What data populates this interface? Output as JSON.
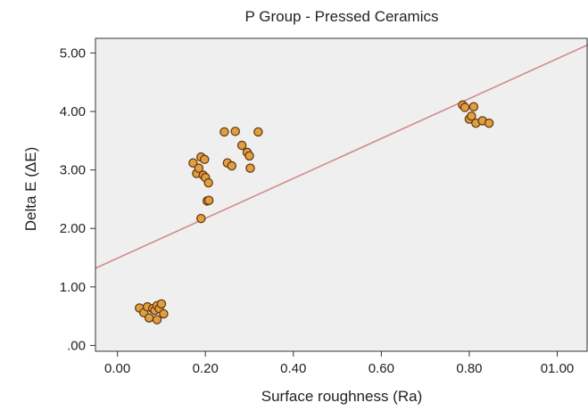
{
  "chart_data": {
    "type": "scatter",
    "title": "P Group - Pressed Ceramics",
    "xlabel": "Surface roughness (Ra)",
    "ylabel": "Delta E (ΔE)",
    "xlim": [
      -0.05,
      1.07
    ],
    "ylim": [
      -0.1,
      5.25
    ],
    "xticks": [
      0.0,
      0.2,
      0.4,
      0.6,
      0.8,
      1.0
    ],
    "xtick_labels": [
      "0.00",
      "0.20",
      "0.40",
      "0.60",
      "0.80",
      "01.00"
    ],
    "yticks": [
      0.0,
      1.0,
      2.0,
      3.0,
      4.0,
      5.0
    ],
    "ytick_labels": [
      ".00",
      "1.00",
      "2.00",
      "3.00",
      "4.00",
      "5.00"
    ],
    "grid": false,
    "points": [
      {
        "x": 0.05,
        "y": 0.64
      },
      {
        "x": 0.06,
        "y": 0.56
      },
      {
        "x": 0.068,
        "y": 0.66
      },
      {
        "x": 0.072,
        "y": 0.47
      },
      {
        "x": 0.08,
        "y": 0.63
      },
      {
        "x": 0.085,
        "y": 0.6
      },
      {
        "x": 0.09,
        "y": 0.68
      },
      {
        "x": 0.09,
        "y": 0.44
      },
      {
        "x": 0.095,
        "y": 0.63
      },
      {
        "x": 0.1,
        "y": 0.71
      },
      {
        "x": 0.105,
        "y": 0.54
      },
      {
        "x": 0.172,
        "y": 3.12
      },
      {
        "x": 0.18,
        "y": 2.94
      },
      {
        "x": 0.185,
        "y": 3.03
      },
      {
        "x": 0.19,
        "y": 2.17
      },
      {
        "x": 0.19,
        "y": 3.22
      },
      {
        "x": 0.195,
        "y": 2.91
      },
      {
        "x": 0.198,
        "y": 3.18
      },
      {
        "x": 0.2,
        "y": 2.87
      },
      {
        "x": 0.204,
        "y": 2.47
      },
      {
        "x": 0.207,
        "y": 2.78
      },
      {
        "x": 0.208,
        "y": 2.48
      },
      {
        "x": 0.243,
        "y": 3.65
      },
      {
        "x": 0.25,
        "y": 3.12
      },
      {
        "x": 0.26,
        "y": 3.07
      },
      {
        "x": 0.268,
        "y": 3.66
      },
      {
        "x": 0.283,
        "y": 3.42
      },
      {
        "x": 0.295,
        "y": 3.3
      },
      {
        "x": 0.3,
        "y": 3.24
      },
      {
        "x": 0.302,
        "y": 3.03
      },
      {
        "x": 0.32,
        "y": 3.65
      },
      {
        "x": 0.785,
        "y": 4.11
      },
      {
        "x": 0.79,
        "y": 4.07
      },
      {
        "x": 0.8,
        "y": 3.87
      },
      {
        "x": 0.805,
        "y": 3.92
      },
      {
        "x": 0.81,
        "y": 4.08
      },
      {
        "x": 0.815,
        "y": 3.8
      },
      {
        "x": 0.83,
        "y": 3.84
      },
      {
        "x": 0.845,
        "y": 3.8
      }
    ],
    "fit_line": {
      "x": [
        -0.05,
        1.07
      ],
      "y": [
        1.32,
        5.14
      ]
    },
    "colors": {
      "plot_background": "#efefef",
      "marker_fill": "#e0a042",
      "marker_edge": "#6a3a12",
      "fit_line": "#d48a8a",
      "axes": "#333333"
    }
  }
}
